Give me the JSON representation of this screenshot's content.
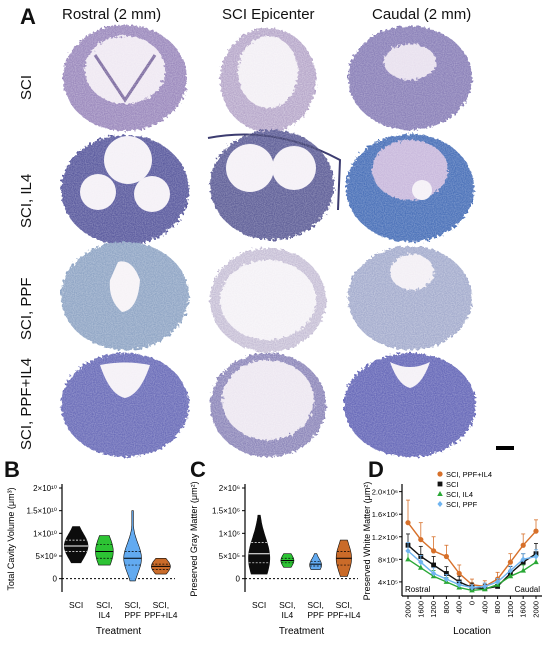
{
  "panel_a": {
    "letter": "A",
    "columns": [
      "Rostral (2 mm)",
      "SCI Epicenter",
      "Caudal (2 mm)"
    ],
    "rows": [
      "SCI",
      "SCI, IL4",
      "SCI, PPF",
      "SCI, PPF+IL4"
    ],
    "stain_colors": {
      "SCI": [
        "#8a7aae",
        "#a88fb8"
      ],
      "SCI, IL4": [
        "#5a5b9e",
        "#4a6fb0"
      ],
      "SCI, PPF": [
        "#8aa0c0",
        "#a8b0c8"
      ],
      "SCI, PPF+IL4": [
        "#6a6bb8",
        "#7a78c4"
      ]
    }
  },
  "chart_data": [
    {
      "panel": "B",
      "type": "violin",
      "ylabel": "Total Cavity Volume (μm³)",
      "xlabel": "Treatment",
      "yticks": [
        "0",
        "5×10⁹",
        "1×10¹⁰",
        "1.5×10¹⁰",
        "2×10¹⁰"
      ],
      "ylim": [
        -0.25,
        2.0
      ],
      "yscale_note": "×10¹⁰",
      "categories": [
        "SCI",
        "SCI,\nIL4",
        "SCI,\nPPF",
        "SCI,\nPPF+IL4"
      ],
      "category_labels": [
        [
          "SCI"
        ],
        [
          "SCI,",
          "IL4"
        ],
        [
          "SCI,",
          "PPF"
        ],
        [
          "SCI,",
          "PPF+IL4"
        ]
      ],
      "colors": [
        "#000000",
        "#22c02a",
        "#5aa6f0",
        "#c8641e"
      ],
      "violins": [
        {
          "min": 0.35,
          "max": 1.15,
          "median": 0.72,
          "q1": 0.6,
          "q3": 0.85,
          "peak": 0.72,
          "width": 1.0
        },
        {
          "min": 0.3,
          "max": 0.95,
          "median": 0.6,
          "q1": 0.45,
          "q3": 0.75,
          "peak": 0.6,
          "width": 0.75
        },
        {
          "min": -0.05,
          "max": 1.5,
          "median": 0.45,
          "q1": 0.3,
          "q3": 0.6,
          "peak": 0.45,
          "width": 0.75
        },
        {
          "min": 0.1,
          "max": 0.45,
          "median": 0.27,
          "q1": 0.2,
          "q3": 0.32,
          "peak": 0.27,
          "width": 0.8
        }
      ]
    },
    {
      "panel": "C",
      "type": "violin",
      "ylabel": "Preserved Gray Matter (μm²)",
      "xlabel": "Treatment",
      "yticks": [
        "0",
        "5×10⁵",
        "1×10⁶",
        "1.5×10⁶",
        "2×10⁶"
      ],
      "ylim": [
        -0.25,
        2.0
      ],
      "yscale_note": "×10⁶",
      "categories": [
        "SCI",
        "SCI,\nIL4",
        "SCI,\nPPF",
        "SCI,\nPPF+IL4"
      ],
      "category_labels": [
        [
          "SCI"
        ],
        [
          "SCI,",
          "IL4"
        ],
        [
          "SCI,",
          "PPF"
        ],
        [
          "SCI,",
          "PPF+IL4"
        ]
      ],
      "colors": [
        "#000000",
        "#22c02a",
        "#5aa6f0",
        "#c8641e"
      ],
      "violins": [
        {
          "min": 0.1,
          "max": 1.4,
          "median": 0.55,
          "q1": 0.35,
          "q3": 0.8,
          "peak": 0.45,
          "width": 0.9
        },
        {
          "min": 0.25,
          "max": 0.55,
          "median": 0.4,
          "q1": 0.35,
          "q3": 0.45,
          "peak": 0.4,
          "width": 0.55
        },
        {
          "min": 0.2,
          "max": 0.55,
          "median": 0.32,
          "q1": 0.28,
          "q3": 0.38,
          "peak": 0.3,
          "width": 0.5
        },
        {
          "min": 0.05,
          "max": 0.85,
          "median": 0.45,
          "q1": 0.3,
          "q3": 0.6,
          "peak": 0.45,
          "width": 0.65
        }
      ]
    },
    {
      "panel": "D",
      "type": "line",
      "ylabel": "Preserved White Matter (μm²)",
      "xlabel": "Location",
      "yticks": [
        "4×10⁵",
        "8×10⁵",
        "1.2×10⁶",
        "1.6×10⁶",
        "2.0×10⁶"
      ],
      "ytick_values": [
        0.4,
        0.8,
        1.2,
        1.6,
        2.0
      ],
      "ylim": [
        0.15,
        2.1
      ],
      "x": [
        "2000",
        "1600",
        "1200",
        "800",
        "400",
        "0",
        "400",
        "800",
        "1200",
        "1600",
        "2000"
      ],
      "region_labels": {
        "left": "Rostral",
        "right": "Caudal"
      },
      "series": [
        {
          "name": "SCI, PPF+IL4",
          "color": "#d7702a",
          "marker": "circle",
          "values": [
            1.45,
            1.15,
            0.95,
            0.85,
            0.55,
            0.35,
            0.32,
            0.45,
            0.75,
            1.05,
            1.3
          ],
          "err": [
            0.4,
            0.3,
            0.25,
            0.2,
            0.15,
            0.1,
            0.1,
            0.12,
            0.15,
            0.2,
            0.2
          ]
        },
        {
          "name": "SCI",
          "color": "#111111",
          "marker": "square",
          "values": [
            1.05,
            0.85,
            0.7,
            0.55,
            0.4,
            0.3,
            0.28,
            0.32,
            0.55,
            0.75,
            0.9
          ],
          "err": [
            0.2,
            0.18,
            0.15,
            0.12,
            0.1,
            0.08,
            0.08,
            0.08,
            0.12,
            0.15,
            0.18
          ]
        },
        {
          "name": "SCI, IL4",
          "color": "#2aa836",
          "marker": "triangle",
          "values": [
            0.8,
            0.65,
            0.5,
            0.4,
            0.3,
            0.25,
            0.27,
            0.35,
            0.5,
            0.6,
            0.75
          ],
          "err": [
            0.15,
            0.12,
            0.1,
            0.08,
            0.06,
            0.05,
            0.05,
            0.06,
            0.08,
            0.1,
            0.12
          ]
        },
        {
          "name": "SCI, PPF",
          "color": "#6fb4f0",
          "marker": "diamond",
          "values": [
            0.95,
            0.75,
            0.55,
            0.45,
            0.35,
            0.3,
            0.32,
            0.4,
            0.6,
            0.8,
            0.85
          ],
          "err": [
            0.15,
            0.12,
            0.1,
            0.08,
            0.06,
            0.05,
            0.06,
            0.06,
            0.08,
            0.1,
            0.12
          ]
        }
      ]
    }
  ],
  "panel_letters": {
    "b": "B",
    "c": "C",
    "d": "D"
  }
}
